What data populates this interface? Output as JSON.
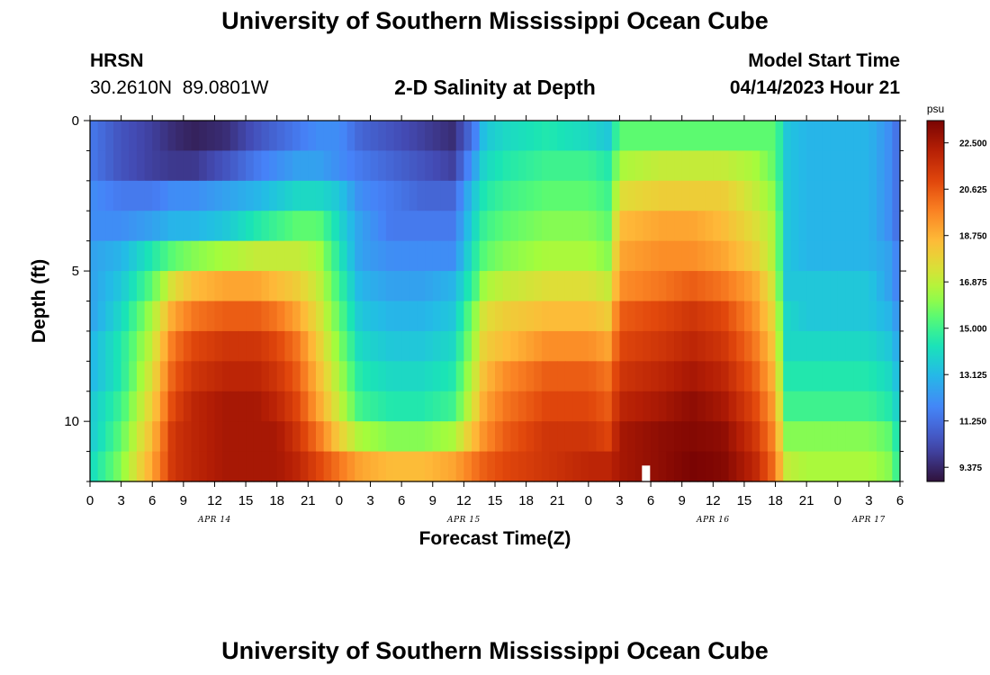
{
  "page": {
    "title": "University of Southern Mississippi Ocean Cube",
    "footer_title": "University of Southern Mississippi Ocean Cube",
    "station_name": "HRSN",
    "station_coords": "30.2610N  89.0801W",
    "plot_title": "2-D Salinity at Depth",
    "model_start_label": "Model Start Time",
    "model_start_value": "04/14/2023 Hour 21"
  },
  "chart_data": {
    "type": "heatmap",
    "title": "2-D Salinity at Depth",
    "xlabel": "Forecast Time(Z)",
    "ylabel": "Depth (ft)",
    "x_range": [
      0,
      78
    ],
    "y_range": [
      0,
      12
    ],
    "x_tick_labels": [
      "0",
      "3",
      "6",
      "9",
      "12",
      "15",
      "18",
      "21",
      "0",
      "3",
      "6",
      "9",
      "12",
      "15",
      "18",
      "21",
      "0",
      "3",
      "6",
      "9",
      "12",
      "15",
      "18",
      "21",
      "0",
      "3",
      "6"
    ],
    "y_tick_labels": [
      "0",
      "5",
      "10"
    ],
    "y_tick_values": [
      0,
      5,
      10
    ],
    "date_labels": [
      {
        "text": "APR 14",
        "hour": 12
      },
      {
        "text": "APR 15",
        "hour": 36
      },
      {
        "text": "APR 16",
        "hour": 60
      },
      {
        "text": "APR 17",
        "hour": 75
      }
    ],
    "colorbar": {
      "unit": "psu",
      "min": 8.8,
      "max": 23.4,
      "labels": [
        "22.500",
        "20.625",
        "18.750",
        "16.875",
        "15.000",
        "13.125",
        "11.250",
        "9.375"
      ],
      "label_values": [
        22.5,
        20.625,
        18.75,
        16.875,
        15.0,
        13.125,
        11.25,
        9.375
      ]
    },
    "depths_ft": [
      0.5,
      1.5,
      2.5,
      3.5,
      4.5,
      5.5,
      6.5,
      7.5,
      8.5,
      9.5,
      10.5,
      11.5
    ],
    "time_keys": [
      0,
      3,
      6,
      8,
      10,
      13,
      16,
      18,
      20,
      22,
      24,
      26,
      29,
      32,
      35,
      37,
      38,
      40,
      44,
      48,
      50,
      51,
      55,
      58,
      61,
      64,
      66,
      67,
      69,
      72,
      75,
      77,
      78
    ],
    "salinity_rows": [
      [
        11.5,
        10.5,
        10.0,
        9.5,
        9.2,
        9.5,
        10.5,
        11.0,
        11.5,
        12.0,
        12.0,
        11.0,
        10.5,
        10.0,
        9.5,
        11.5,
        13.5,
        14.0,
        14.5,
        14.0,
        13.5,
        15.5,
        15.5,
        15.5,
        15.5,
        15.5,
        15.5,
        13.5,
        13.0,
        13.0,
        13.0,
        12.0,
        11.0
      ],
      [
        11.5,
        10.5,
        10.0,
        9.8,
        9.8,
        10.5,
        11.5,
        12.0,
        12.5,
        12.5,
        12.0,
        11.5,
        11.0,
        10.5,
        10.0,
        12.5,
        14.0,
        14.5,
        15.0,
        15.0,
        14.5,
        16.5,
        17.0,
        17.0,
        17.0,
        16.5,
        15.5,
        13.5,
        13.0,
        13.0,
        13.0,
        12.0,
        11.0
      ],
      [
        12.0,
        11.5,
        11.5,
        12.0,
        12.0,
        12.5,
        13.0,
        13.5,
        14.0,
        14.0,
        13.5,
        12.0,
        11.5,
        11.0,
        11.0,
        13.5,
        14.5,
        15.0,
        15.5,
        15.5,
        15.0,
        17.5,
        18.0,
        18.0,
        18.0,
        17.0,
        16.0,
        13.5,
        13.0,
        13.0,
        13.0,
        12.0,
        11.0
      ],
      [
        12.0,
        12.0,
        12.5,
        13.0,
        13.0,
        13.5,
        14.5,
        15.0,
        15.5,
        15.5,
        14.0,
        12.5,
        11.5,
        11.5,
        11.5,
        14.0,
        15.0,
        15.5,
        16.0,
        16.0,
        15.5,
        18.5,
        19.0,
        19.0,
        18.5,
        17.5,
        16.5,
        13.5,
        13.0,
        13.0,
        13.0,
        12.0,
        11.0
      ],
      [
        12.5,
        13.0,
        14.5,
        15.5,
        16.0,
        16.5,
        17.0,
        17.0,
        17.0,
        16.5,
        14.5,
        12.5,
        12.0,
        12.0,
        12.0,
        14.5,
        15.5,
        16.0,
        16.5,
        16.5,
        16.0,
        19.0,
        19.5,
        19.5,
        19.0,
        18.0,
        16.5,
        13.5,
        13.0,
        13.0,
        13.0,
        12.5,
        11.5
      ],
      [
        12.5,
        13.5,
        15.5,
        17.5,
        18.5,
        19.0,
        19.0,
        18.5,
        18.0,
        17.0,
        15.0,
        13.0,
        12.5,
        12.5,
        13.0,
        15.0,
        16.5,
        17.0,
        17.5,
        17.5,
        17.0,
        19.5,
        20.0,
        20.5,
        20.0,
        19.0,
        17.0,
        13.5,
        13.5,
        13.5,
        13.5,
        12.5,
        11.5
      ],
      [
        12.5,
        14.0,
        16.5,
        19.0,
        20.0,
        20.5,
        20.5,
        20.0,
        19.0,
        17.5,
        15.5,
        13.5,
        13.0,
        13.0,
        13.5,
        16.0,
        17.5,
        18.0,
        18.5,
        18.5,
        18.0,
        20.5,
        21.0,
        21.5,
        21.0,
        19.5,
        17.5,
        14.0,
        13.5,
        13.5,
        13.5,
        13.0,
        12.0
      ],
      [
        13.0,
        14.5,
        17.0,
        20.0,
        21.0,
        21.5,
        21.5,
        21.0,
        20.0,
        18.0,
        16.0,
        14.0,
        13.5,
        13.5,
        14.0,
        16.5,
        18.0,
        18.5,
        19.5,
        19.5,
        19.0,
        21.0,
        21.5,
        22.0,
        21.5,
        20.0,
        18.0,
        14.0,
        14.0,
        14.0,
        14.0,
        13.5,
        12.5
      ],
      [
        13.0,
        14.5,
        17.5,
        20.5,
        21.5,
        22.0,
        22.0,
        21.5,
        20.5,
        18.5,
        16.5,
        14.5,
        14.0,
        14.0,
        14.5,
        17.0,
        18.5,
        19.5,
        20.5,
        20.5,
        20.0,
        21.5,
        22.0,
        22.5,
        22.0,
        20.5,
        18.5,
        14.5,
        14.5,
        14.5,
        14.5,
        14.0,
        13.0
      ],
      [
        13.5,
        15.0,
        18.0,
        21.0,
        22.0,
        22.5,
        22.5,
        22.0,
        21.0,
        19.0,
        17.0,
        15.0,
        14.5,
        14.5,
        15.0,
        17.5,
        19.0,
        20.0,
        21.0,
        21.0,
        20.5,
        22.0,
        22.5,
        23.0,
        22.5,
        21.0,
        19.0,
        15.0,
        15.0,
        15.0,
        15.0,
        14.5,
        13.5
      ],
      [
        13.5,
        15.5,
        18.5,
        21.5,
        22.0,
        22.5,
        22.5,
        22.5,
        21.5,
        20.0,
        18.0,
        16.5,
        16.0,
        16.0,
        16.5,
        18.5,
        19.5,
        20.5,
        21.5,
        21.5,
        21.0,
        22.5,
        23.0,
        23.2,
        23.0,
        21.5,
        19.5,
        16.0,
        16.0,
        16.0,
        16.0,
        15.5,
        14.0
      ],
      [
        14.0,
        16.0,
        19.0,
        21.5,
        22.0,
        22.5,
        22.5,
        22.5,
        22.0,
        21.0,
        20.0,
        19.0,
        18.5,
        18.5,
        19.0,
        20.0,
        20.5,
        21.0,
        21.5,
        22.0,
        22.0,
        22.5,
        23.0,
        23.4,
        23.2,
        22.0,
        20.0,
        17.0,
        16.5,
        16.5,
        16.5,
        16.0,
        14.5
      ]
    ],
    "marker": {
      "hour": 53.5,
      "depth_ft": 11.5,
      "color": "#ffffff"
    }
  }
}
